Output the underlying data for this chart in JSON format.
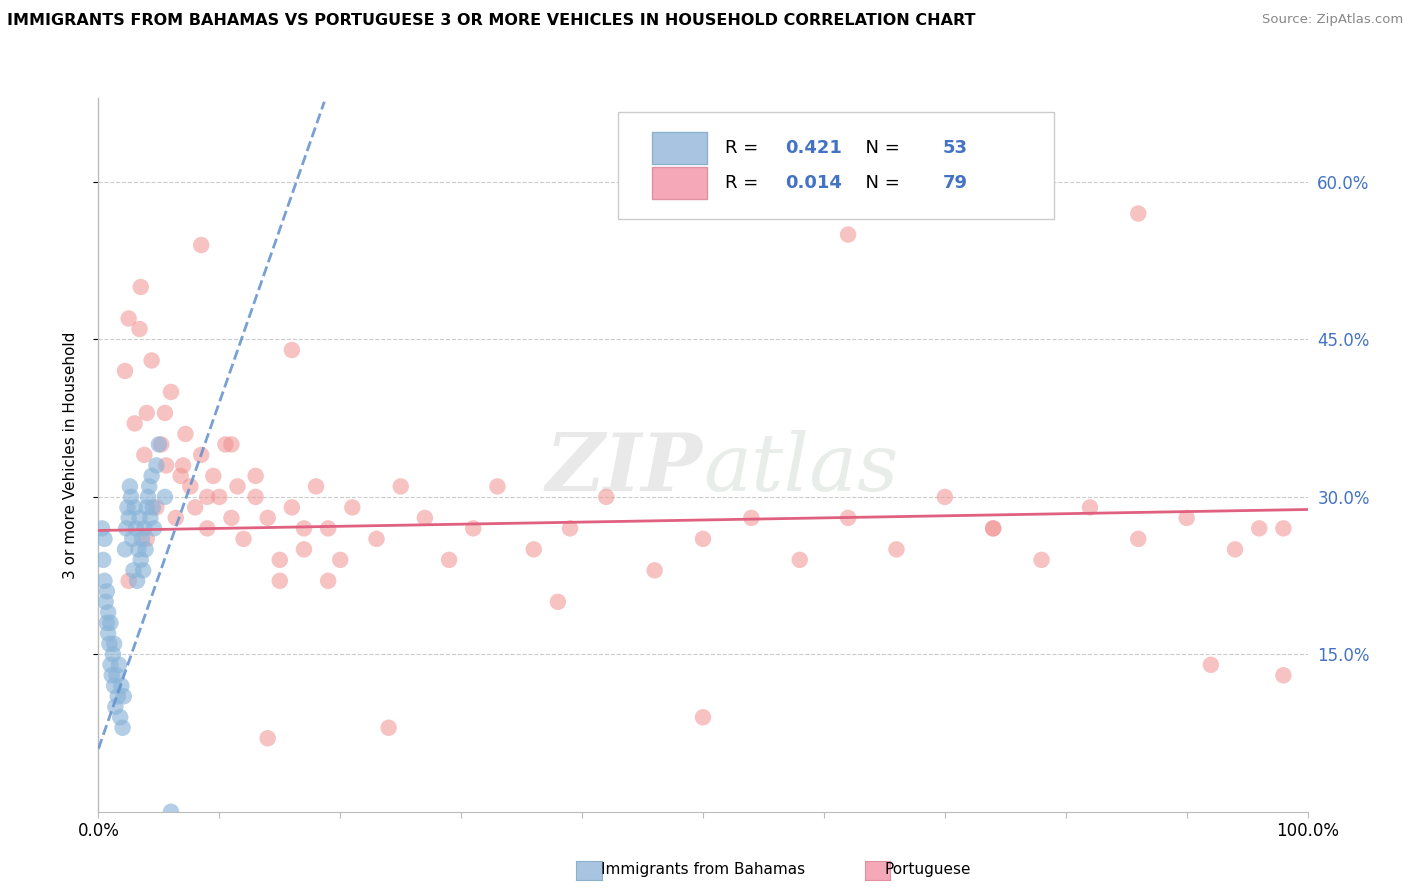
{
  "title": "IMMIGRANTS FROM BAHAMAS VS PORTUGUESE 3 OR MORE VEHICLES IN HOUSEHOLD CORRELATION CHART",
  "source": "Source: ZipAtlas.com",
  "ylabel": "3 or more Vehicles in Household",
  "ytick_vals": [
    0.15,
    0.3,
    0.45,
    0.6
  ],
  "ytick_labels": [
    "15.0%",
    "30.0%",
    "45.0%",
    "60.0%"
  ],
  "xlim": [
    0.0,
    1.0
  ],
  "ylim": [
    0.0,
    0.68
  ],
  "legend_color1": "#a8c4e0",
  "legend_color2": "#f4a8b8",
  "r1": "0.421",
  "n1": "53",
  "r2": "0.014",
  "n2": "79",
  "watermark": "ZIPatlas",
  "scatter_color_blue": "#8ab4d8",
  "scatter_color_pink": "#f09090",
  "trendline_blue_color": "#6090cc",
  "trendline_pink_color": "#e06080",
  "blue_x": [
    0.003,
    0.004,
    0.005,
    0.005,
    0.006,
    0.007,
    0.007,
    0.008,
    0.008,
    0.009,
    0.01,
    0.01,
    0.011,
    0.012,
    0.013,
    0.013,
    0.014,
    0.015,
    0.016,
    0.017,
    0.018,
    0.019,
    0.02,
    0.021,
    0.022,
    0.023,
    0.024,
    0.025,
    0.026,
    0.027,
    0.028,
    0.029,
    0.03,
    0.031,
    0.032,
    0.033,
    0.034,
    0.035,
    0.036,
    0.037,
    0.038,
    0.039,
    0.04,
    0.041,
    0.042,
    0.043,
    0.044,
    0.045,
    0.046,
    0.048,
    0.05,
    0.055,
    0.06
  ],
  "blue_y": [
    0.27,
    0.24,
    0.22,
    0.26,
    0.2,
    0.18,
    0.21,
    0.17,
    0.19,
    0.16,
    0.14,
    0.18,
    0.13,
    0.15,
    0.12,
    0.16,
    0.1,
    0.13,
    0.11,
    0.14,
    0.09,
    0.12,
    0.08,
    0.11,
    0.25,
    0.27,
    0.29,
    0.28,
    0.31,
    0.3,
    0.26,
    0.23,
    0.29,
    0.27,
    0.22,
    0.25,
    0.28,
    0.24,
    0.26,
    0.23,
    0.27,
    0.25,
    0.29,
    0.3,
    0.31,
    0.28,
    0.32,
    0.29,
    0.27,
    0.33,
    0.35,
    0.3,
    0.0
  ],
  "pink_x": [
    0.022,
    0.025,
    0.03,
    0.034,
    0.038,
    0.04,
    0.044,
    0.048,
    0.052,
    0.056,
    0.06,
    0.064,
    0.068,
    0.072,
    0.076,
    0.08,
    0.085,
    0.09,
    0.095,
    0.1,
    0.105,
    0.11,
    0.115,
    0.12,
    0.13,
    0.14,
    0.15,
    0.16,
    0.17,
    0.18,
    0.19,
    0.2,
    0.025,
    0.04,
    0.055,
    0.07,
    0.09,
    0.11,
    0.13,
    0.15,
    0.17,
    0.19,
    0.21,
    0.23,
    0.25,
    0.27,
    0.29,
    0.31,
    0.33,
    0.36,
    0.39,
    0.42,
    0.46,
    0.5,
    0.54,
    0.58,
    0.62,
    0.66,
    0.7,
    0.74,
    0.78,
    0.82,
    0.86,
    0.9,
    0.94,
    0.98,
    0.035,
    0.085,
    0.16,
    0.24,
    0.38,
    0.5,
    0.62,
    0.74,
    0.86,
    0.92,
    0.96,
    0.98,
    0.14
  ],
  "pink_y": [
    0.42,
    0.47,
    0.37,
    0.46,
    0.34,
    0.38,
    0.43,
    0.29,
    0.35,
    0.33,
    0.4,
    0.28,
    0.32,
    0.36,
    0.31,
    0.29,
    0.34,
    0.27,
    0.32,
    0.3,
    0.35,
    0.28,
    0.31,
    0.26,
    0.3,
    0.28,
    0.22,
    0.29,
    0.25,
    0.31,
    0.27,
    0.24,
    0.22,
    0.26,
    0.38,
    0.33,
    0.3,
    0.35,
    0.32,
    0.24,
    0.27,
    0.22,
    0.29,
    0.26,
    0.31,
    0.28,
    0.24,
    0.27,
    0.31,
    0.25,
    0.27,
    0.3,
    0.23,
    0.26,
    0.28,
    0.24,
    0.28,
    0.25,
    0.3,
    0.27,
    0.24,
    0.29,
    0.26,
    0.28,
    0.25,
    0.27,
    0.5,
    0.54,
    0.44,
    0.08,
    0.2,
    0.09,
    0.55,
    0.27,
    0.57,
    0.14,
    0.27,
    0.13,
    0.07
  ]
}
